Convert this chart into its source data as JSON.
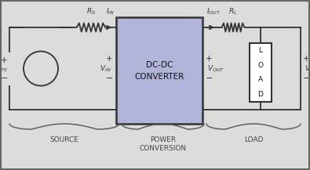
{
  "bg_color": "#dcdcdc",
  "wire_color": "#333333",
  "box_fill": "#b0b4d8",
  "box_edge": "#333333",
  "load_fill": "#ffffff",
  "load_edge": "#333333",
  "label_color": "#444444",
  "converter_label": [
    "DC-DC",
    "CONVERTER"
  ],
  "load_label": [
    "L",
    "O",
    "A",
    "D"
  ],
  "figw": 3.95,
  "figh": 2.17,
  "dpi": 100
}
